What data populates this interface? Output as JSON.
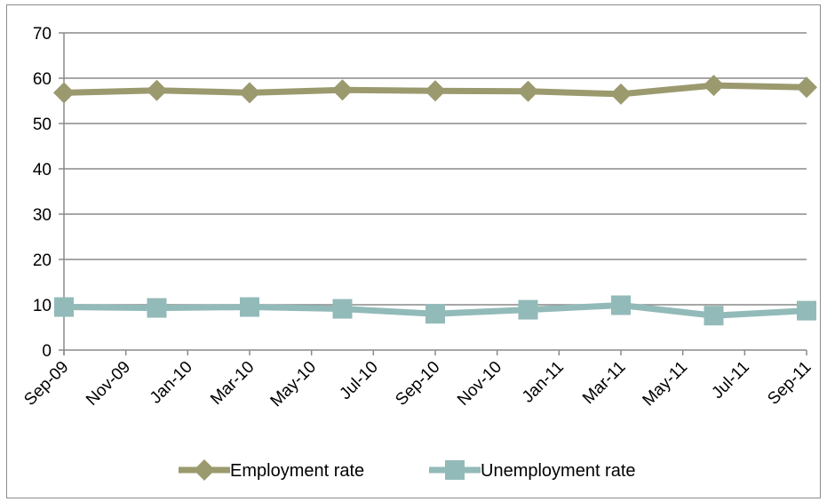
{
  "chart_data": {
    "type": "line",
    "x_ticks": [
      "Sep-09",
      "Nov-09",
      "Jan-10",
      "Mar-10",
      "May-10",
      "Jul-10",
      "Sep-10",
      "Nov-10",
      "Jan-11",
      "Mar-11",
      "May-11",
      "Jul-11",
      "Sep-11"
    ],
    "y_ticks": [
      "0",
      "10",
      "20",
      "30",
      "40",
      "50",
      "60",
      "70"
    ],
    "ylim": [
      0,
      70
    ],
    "grid": "horizontal",
    "legend_position": "bottom",
    "series": [
      {
        "name": "Employment rate",
        "color": "#9b9a6e",
        "marker": "diamond",
        "points": [
          {
            "x": "Sep-09",
            "y": 56.8
          },
          {
            "x": "Dec-09",
            "y": 57.3
          },
          {
            "x": "Mar-10",
            "y": 56.8
          },
          {
            "x": "Jun-10",
            "y": 57.4
          },
          {
            "x": "Sep-10",
            "y": 57.2
          },
          {
            "x": "Dec-10",
            "y": 57.1
          },
          {
            "x": "Mar-11",
            "y": 56.5
          },
          {
            "x": "Jun-11",
            "y": 58.4
          },
          {
            "x": "Sep-11",
            "y": 58.0
          }
        ]
      },
      {
        "name": "Unemployment rate",
        "color": "#92bab8",
        "marker": "square",
        "points": [
          {
            "x": "Sep-09",
            "y": 9.5
          },
          {
            "x": "Dec-09",
            "y": 9.3
          },
          {
            "x": "Mar-10",
            "y": 9.5
          },
          {
            "x": "Jun-10",
            "y": 9.1
          },
          {
            "x": "Sep-10",
            "y": 8.0
          },
          {
            "x": "Dec-10",
            "y": 8.9
          },
          {
            "x": "Mar-11",
            "y": 9.9
          },
          {
            "x": "Jun-11",
            "y": 7.6
          },
          {
            "x": "Sep-11",
            "y": 8.7
          }
        ]
      }
    ]
  }
}
